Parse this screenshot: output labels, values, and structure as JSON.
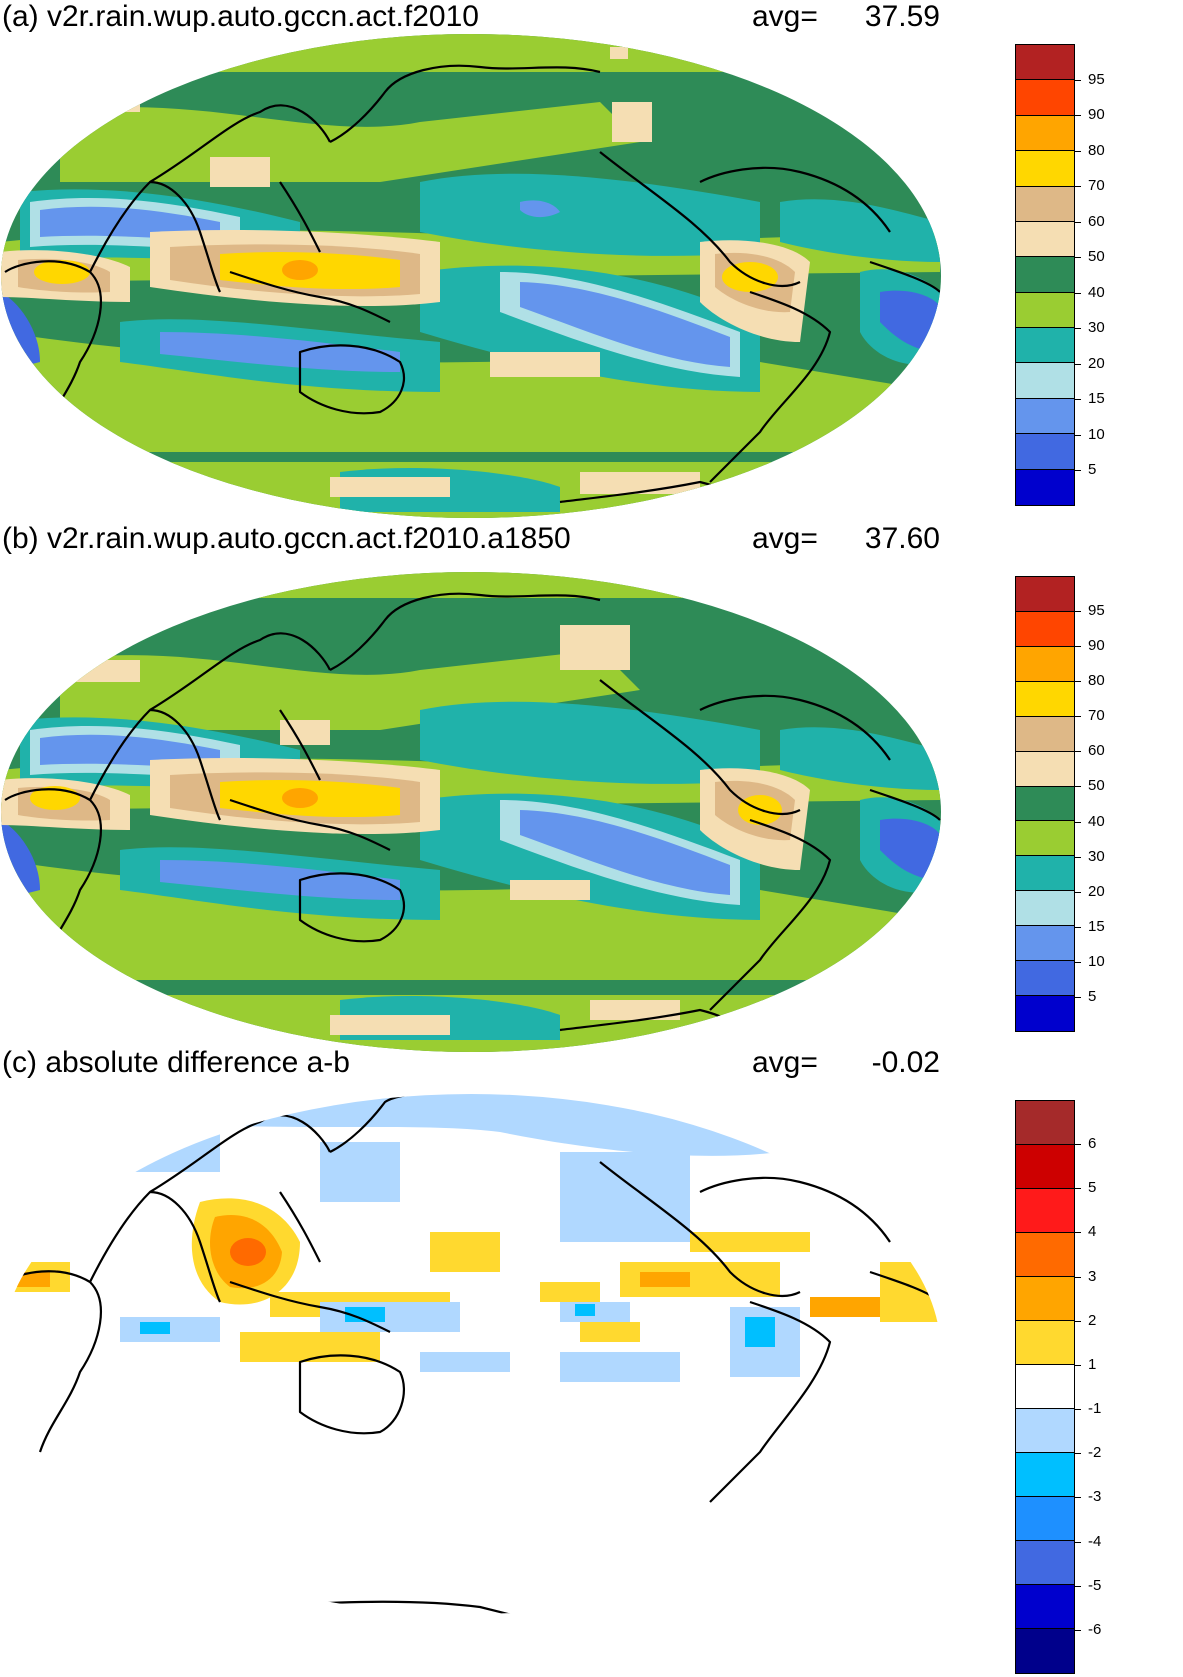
{
  "panels": [
    {
      "id": "a",
      "title": "(a) v2r.rain.wup.auto.gccn.act.f2010",
      "avg_label": "avg=",
      "avg_value": "37.59",
      "colorbar": {
        "labels": [
          "95",
          "90",
          "80",
          "70",
          "60",
          "50",
          "40",
          "30",
          "20",
          "15",
          "10",
          "5"
        ],
        "colors": [
          "#b22222",
          "#ff4500",
          "#ffa500",
          "#ffd700",
          "#deb887",
          "#f5deb3",
          "#2e8b57",
          "#9acd32",
          "#20b2aa",
          "#b0e0e6",
          "#6495ed",
          "#4169e1",
          "#0000cd"
        ]
      }
    },
    {
      "id": "b",
      "title": "(b) v2r.rain.wup.auto.gccn.act.f2010.a1850",
      "avg_label": "avg=",
      "avg_value": "37.60",
      "colorbar": {
        "labels": [
          "95",
          "90",
          "80",
          "70",
          "60",
          "50",
          "40",
          "30",
          "20",
          "15",
          "10",
          "5"
        ],
        "colors": [
          "#b22222",
          "#ff4500",
          "#ffa500",
          "#ffd700",
          "#deb887",
          "#f5deb3",
          "#2e8b57",
          "#9acd32",
          "#20b2aa",
          "#b0e0e6",
          "#6495ed",
          "#4169e1",
          "#0000cd"
        ]
      }
    },
    {
      "id": "c",
      "title": "(c) absolute difference a-b",
      "avg_label": "avg=",
      "avg_value": "-0.02",
      "colorbar": {
        "labels": [
          "6",
          "5",
          "4",
          "3",
          "2",
          "1",
          "-1",
          "-2",
          "-3",
          "-4",
          "-5",
          "-6"
        ],
        "colors": [
          "#a52a2a",
          "#cd0000",
          "#ff1a1a",
          "#ff6a00",
          "#ffa500",
          "#ffd92f",
          "#ffffff",
          "#b0d8ff",
          "#00bfff",
          "#1e90ff",
          "#4169e1",
          "#0000cd",
          "#00008b"
        ]
      }
    }
  ]
}
